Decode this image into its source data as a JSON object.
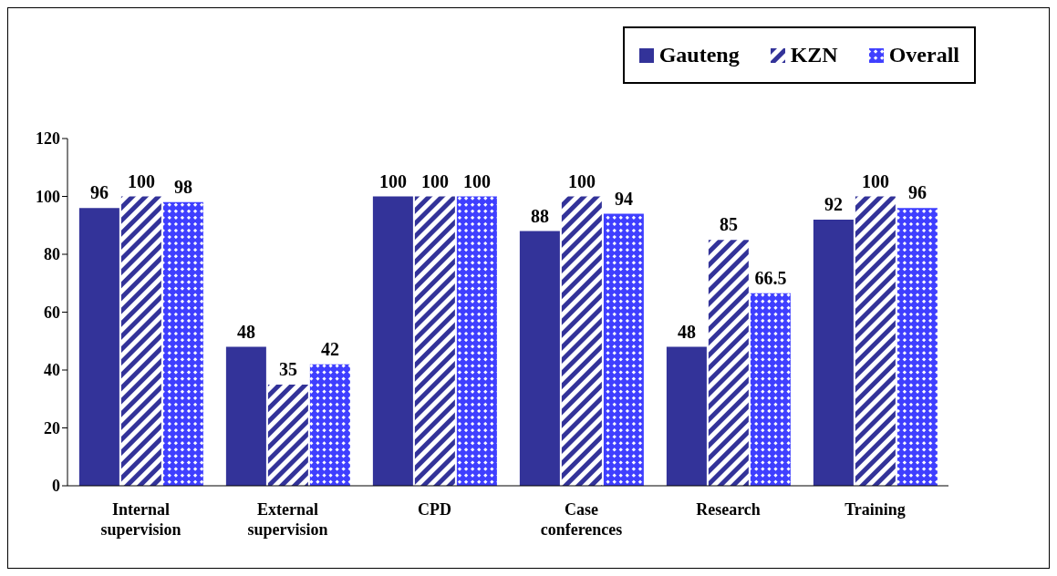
{
  "chart_data": {
    "type": "bar",
    "categories": [
      "Internal supervision",
      "External supervision",
      "CPD",
      "Case conferences",
      "Research",
      "Training"
    ],
    "series": [
      {
        "name": "Gauteng",
        "color": "#333399",
        "values": [
          96,
          48,
          100,
          88,
          48,
          92
        ]
      },
      {
        "name": "KZN",
        "color": "#333399",
        "values": [
          100,
          35,
          100,
          100,
          85,
          100
        ]
      },
      {
        "name": "Overall",
        "color": "#3f3fff",
        "values": [
          98,
          42,
          100,
          94,
          66.5,
          96
        ]
      }
    ],
    "ylim": [
      0,
      120
    ],
    "yticks": [
      0,
      20,
      40,
      60,
      80,
      100,
      120
    ],
    "grid": false,
    "legend": "top right",
    "data_labels": true
  }
}
